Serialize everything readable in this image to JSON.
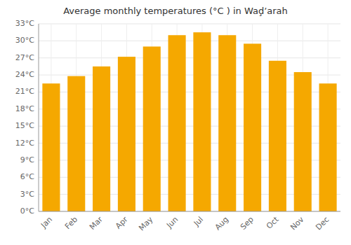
{
  "chart_data": {
    "type": "bar",
    "title": "Average monthly temperatures (°C ) in Waḑʼarah",
    "categories": [
      "Jan",
      "Feb",
      "Mar",
      "Apr",
      "May",
      "Jun",
      "Jul",
      "Aug",
      "Sep",
      "Oct",
      "Nov",
      "Dec"
    ],
    "values": [
      22.5,
      23.8,
      25.5,
      27.2,
      29.0,
      31.0,
      31.5,
      31.0,
      29.5,
      26.5,
      24.5,
      22.5
    ],
    "color": "#F5A800",
    "ylim": [
      0,
      33
    ],
    "yticks": [
      {
        "value": 0,
        "label": "0°C"
      },
      {
        "value": 3,
        "label": "3°C"
      },
      {
        "value": 6,
        "label": "6°C"
      },
      {
        "value": 9,
        "label": "9°C"
      },
      {
        "value": 12,
        "label": "12°C"
      },
      {
        "value": 15,
        "label": "15°C"
      },
      {
        "value": 18,
        "label": "18°C"
      },
      {
        "value": 21,
        "label": "21°C"
      },
      {
        "value": 24,
        "label": "24°C"
      },
      {
        "value": 27,
        "label": "27°C"
      },
      {
        "value": 30,
        "label": "30°C"
      },
      {
        "value": 33,
        "label": "33°C"
      }
    ],
    "grid": true
  }
}
